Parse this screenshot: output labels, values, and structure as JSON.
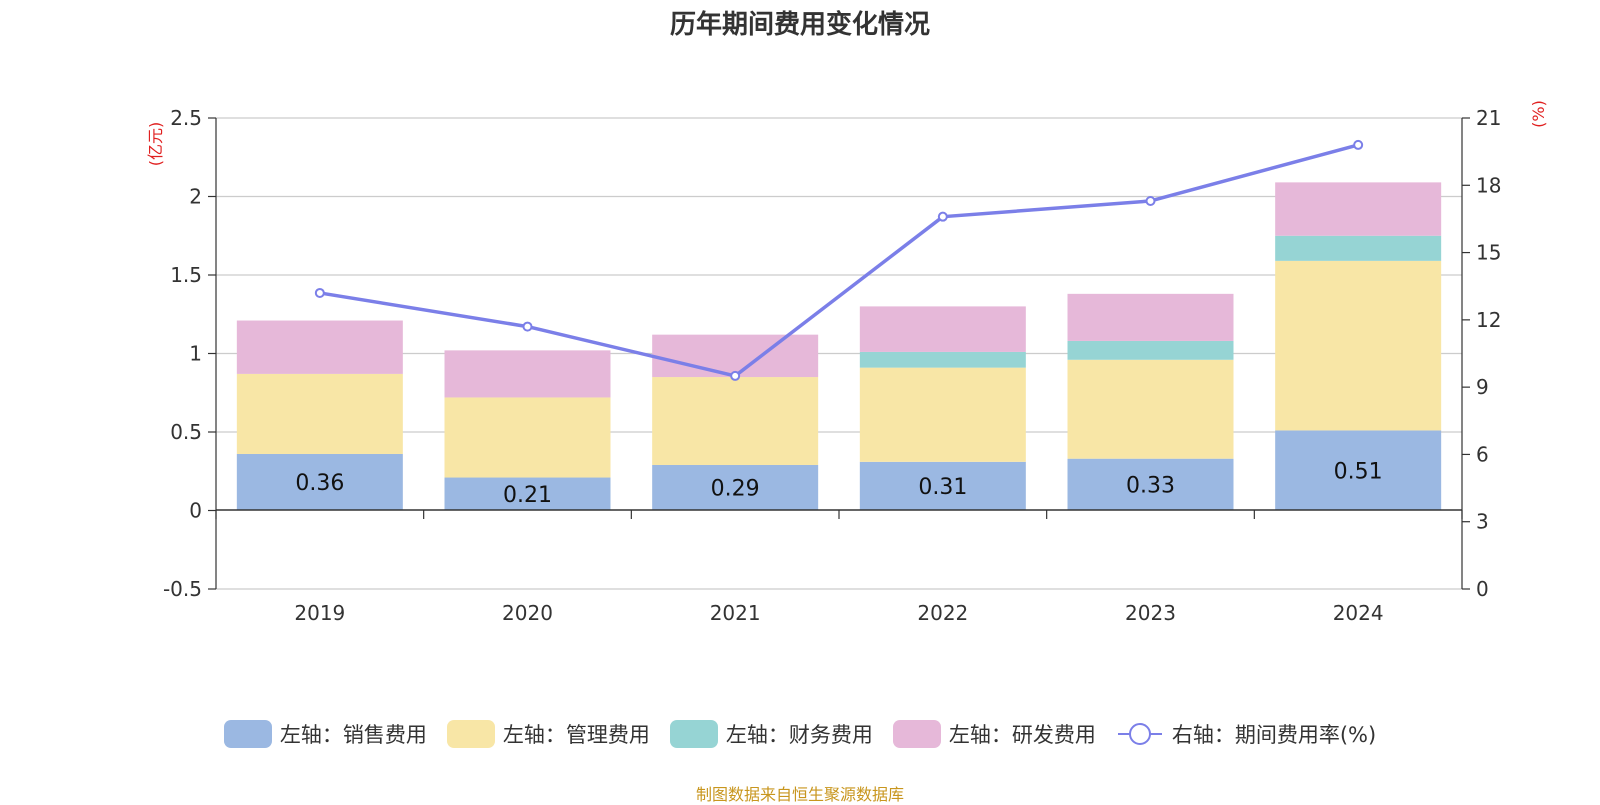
{
  "chart_data": {
    "type": "bar",
    "stacked": true,
    "title": "历年期间费用变化情况",
    "categories": [
      "2019",
      "2020",
      "2021",
      "2022",
      "2023",
      "2024"
    ],
    "y_left": {
      "unit": "(亿元)",
      "ylim": [
        -0.5,
        2.5
      ],
      "ticks": [
        "-0.5",
        "0",
        "0.5",
        "1",
        "1.5",
        "2",
        "2.5"
      ]
    },
    "y_right": {
      "unit": "(%)",
      "ylim": [
        0,
        21
      ],
      "ticks": [
        "0",
        "3",
        "6",
        "9",
        "12",
        "15",
        "18",
        "21"
      ]
    },
    "series": [
      {
        "name": "左轴：销售费用",
        "type": "bar",
        "axis": "left",
        "color": "#9bb8e2",
        "values": [
          0.36,
          0.21,
          0.29,
          0.31,
          0.33,
          0.51
        ],
        "labels": [
          "0.36",
          "0.21",
          "0.29",
          "0.31",
          "0.33",
          "0.51"
        ]
      },
      {
        "name": "左轴：管理费用",
        "type": "bar",
        "axis": "left",
        "color": "#f8e6a6",
        "values": [
          0.51,
          0.51,
          0.56,
          0.6,
          0.63,
          1.08
        ]
      },
      {
        "name": "左轴：财务费用",
        "type": "bar",
        "axis": "left",
        "color": "#96d4d4",
        "values": [
          0,
          0,
          0,
          0.1,
          0.12,
          0.16
        ]
      },
      {
        "name": "左轴：研发费用",
        "type": "bar",
        "axis": "left",
        "color": "#e6b8d9",
        "values": [
          0.34,
          0.3,
          0.27,
          0.29,
          0.3,
          0.34
        ]
      },
      {
        "name": "右轴：期间费用率(%)",
        "type": "line",
        "axis": "right",
        "color": "#7b7fe8",
        "values": [
          13.2,
          11.7,
          9.5,
          16.6,
          17.3,
          19.8
        ]
      }
    ],
    "grid": true,
    "legend_position": "bottom"
  },
  "source_note": "制图数据来自恒生聚源数据库",
  "colors": {
    "title": "#333333",
    "unit": "#e02020",
    "grid": "#cccccc",
    "axis": "#333333"
  }
}
